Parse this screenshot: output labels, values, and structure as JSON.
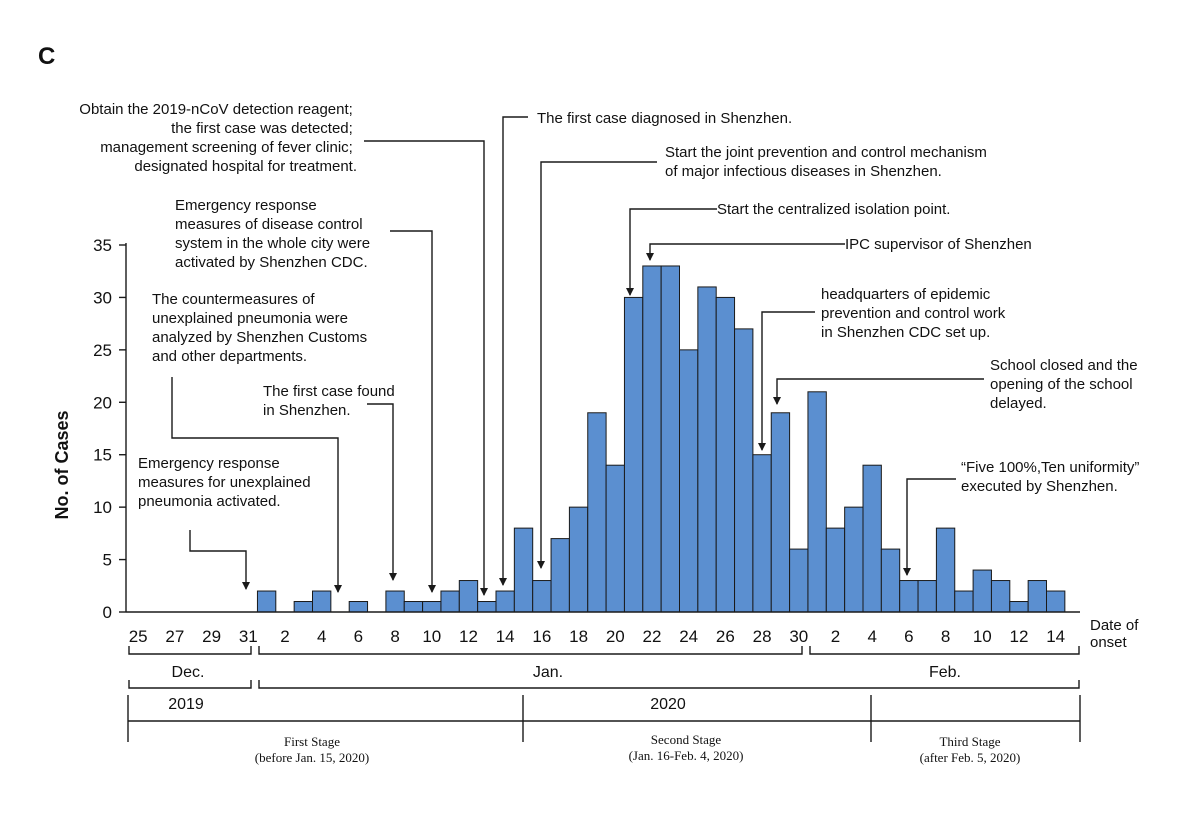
{
  "panel_label": "C",
  "chart_data": {
    "type": "bar",
    "title": "",
    "ylabel": "No. of Cases",
    "xlabel": "Date of onset",
    "xlabel_lines": [
      "Date of",
      "onset"
    ],
    "ylim": [
      0,
      35
    ],
    "yticks": [
      0,
      5,
      10,
      15,
      20,
      25,
      30,
      35
    ],
    "grid": false,
    "categories": [
      "Dec 25",
      "Dec 26",
      "Dec 27",
      "Dec 28",
      "Dec 29",
      "Dec 30",
      "Dec 31",
      "Jan 1",
      "Jan 2",
      "Jan 3",
      "Jan 4",
      "Jan 5",
      "Jan 6",
      "Jan 7",
      "Jan 8",
      "Jan 9",
      "Jan 10",
      "Jan 11",
      "Jan 12",
      "Jan 13",
      "Jan 14",
      "Jan 15",
      "Jan 16",
      "Jan 17",
      "Jan 18",
      "Jan 19",
      "Jan 20",
      "Jan 21",
      "Jan 22",
      "Jan 23",
      "Jan 24",
      "Jan 25",
      "Jan 26",
      "Jan 27",
      "Jan 28",
      "Jan 29",
      "Jan 30",
      "Jan 31",
      "Feb 1",
      "Feb 2",
      "Feb 3",
      "Feb 4",
      "Feb 5",
      "Feb 6",
      "Feb 7",
      "Feb 8",
      "Feb 9",
      "Feb 10",
      "Feb 11",
      "Feb 12",
      "Feb 13",
      "Feb 14"
    ],
    "values": [
      0,
      0,
      0,
      0,
      0,
      0,
      0,
      2,
      0,
      1,
      2,
      0,
      1,
      0,
      2,
      1,
      1,
      2,
      3,
      1,
      2,
      8,
      3,
      7,
      10,
      19,
      14,
      30,
      33,
      33,
      25,
      31,
      30,
      27,
      15,
      19,
      6,
      21,
      8,
      10,
      14,
      6,
      3,
      3,
      8,
      2,
      4,
      3,
      1,
      3,
      2,
      0
    ],
    "tick_labels": [
      "25",
      "27",
      "29",
      "31",
      "2",
      "4",
      "6",
      "8",
      "10",
      "12",
      "14",
      "16",
      "18",
      "20",
      "22",
      "24",
      "26",
      "28",
      "30",
      "2",
      "4",
      "6",
      "8",
      "10",
      "12",
      "14"
    ],
    "month_labels": [
      "Dec.",
      "Jan.",
      "Feb."
    ],
    "year_labels": [
      "2019",
      "2020"
    ],
    "stages": [
      {
        "name": "First Stage",
        "range": "(before Jan. 15, 2020)"
      },
      {
        "name": "Second Stage",
        "range": "(Jan. 16-Feb. 4, 2020)"
      },
      {
        "name": "Third Stage",
        "range": "(after Feb. 5, 2020)"
      }
    ],
    "annotations": [
      {
        "date": "Dec 31",
        "lines": [
          "Emergency response",
          "measures for unexplained",
          "pneumonia activated."
        ]
      },
      {
        "date": "Jan 5",
        "lines": [
          "The countermeasures of",
          "unexplained pneumonia were",
          "analyzed by Shenzhen Customs",
          "and other departments."
        ]
      },
      {
        "date": "Jan 8",
        "lines": [
          "The first case found",
          "in Shenzhen."
        ]
      },
      {
        "date": "Jan 10",
        "lines": [
          "Emergency response",
          "measures of disease control",
          "system in the whole city were",
          "activated by Shenzhen CDC."
        ]
      },
      {
        "date": "Jan 13",
        "lines": [
          "Obtain the 2019-nCoV detection reagent;",
          "the first case was detected;",
          "management screening of fever clinic;",
          "designated hospital for treatment."
        ]
      },
      {
        "date": "Jan 14",
        "lines": [
          "The first case diagnosed in Shenzhen."
        ]
      },
      {
        "date": "Jan 16",
        "lines": [
          "Start the joint prevention and control mechanism",
          "of major infectious diseases in Shenzhen."
        ]
      },
      {
        "date": "Jan 21",
        "lines": [
          "Start the centralized isolation point."
        ]
      },
      {
        "date": "Jan 22",
        "lines": [
          "IPC supervisor of Shenzhen"
        ]
      },
      {
        "date": "Jan 28",
        "lines": [
          "headquarters of epidemic",
          "prevention and control work",
          "in Shenzhen CDC set up."
        ]
      },
      {
        "date": "Jan 29",
        "lines": [
          "School closed and the",
          "opening of the school",
          "delayed."
        ]
      },
      {
        "date": "Feb 6",
        "lines": [
          "“Five 100%,Ten uniformity”",
          "executed by Shenzhen."
        ]
      }
    ]
  }
}
